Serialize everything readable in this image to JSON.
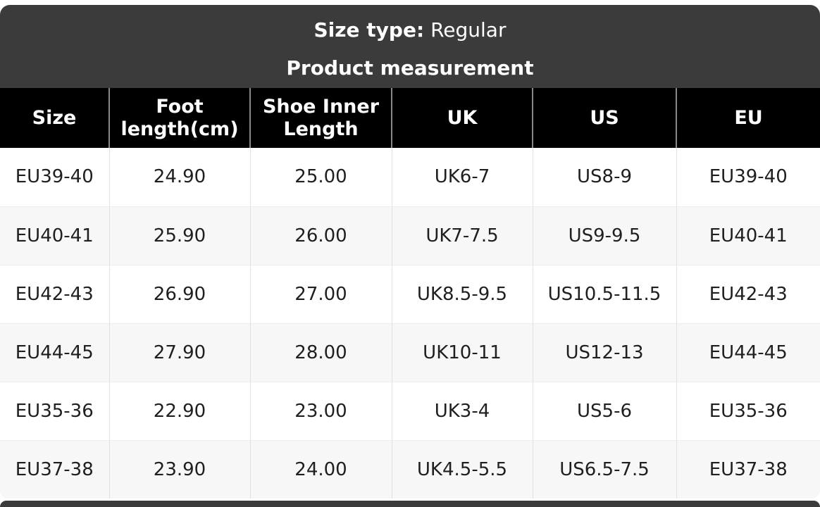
{
  "header": {
    "size_type_label": "Size type:",
    "size_type_value": "Regular",
    "subtitle": "Product measurement"
  },
  "table": {
    "columns": [
      "Size",
      "Foot length(cm)",
      "Shoe Inner Length",
      "UK",
      "US",
      "EU"
    ],
    "rows": [
      [
        "EU39-40",
        "24.90",
        "25.00",
        "UK6-7",
        "US8-9",
        "EU39-40"
      ],
      [
        "EU40-41",
        "25.90",
        "26.00",
        "UK7-7.5",
        "US9-9.5",
        "EU40-41"
      ],
      [
        "EU42-43",
        "26.90",
        "27.00",
        "UK8.5-9.5",
        "US10.5-11.5",
        "EU42-43"
      ],
      [
        "EU44-45",
        "27.90",
        "28.00",
        "UK10-11",
        "US12-13",
        "EU44-45"
      ],
      [
        "EU35-36",
        "22.90",
        "23.00",
        "UK3-4",
        "US5-6",
        "EU35-36"
      ],
      [
        "EU37-38",
        "23.90",
        "24.00",
        "UK4.5-5.5",
        "US6.5-7.5",
        "EU37-38"
      ]
    ]
  },
  "colors": {
    "section_header_bg": "#3b3b3b",
    "table_header_bg": "#000000",
    "row_alt_bg": "#f7f7f7",
    "text_on_dark": "#ffffff",
    "text_on_light": "#1f1f1f"
  }
}
